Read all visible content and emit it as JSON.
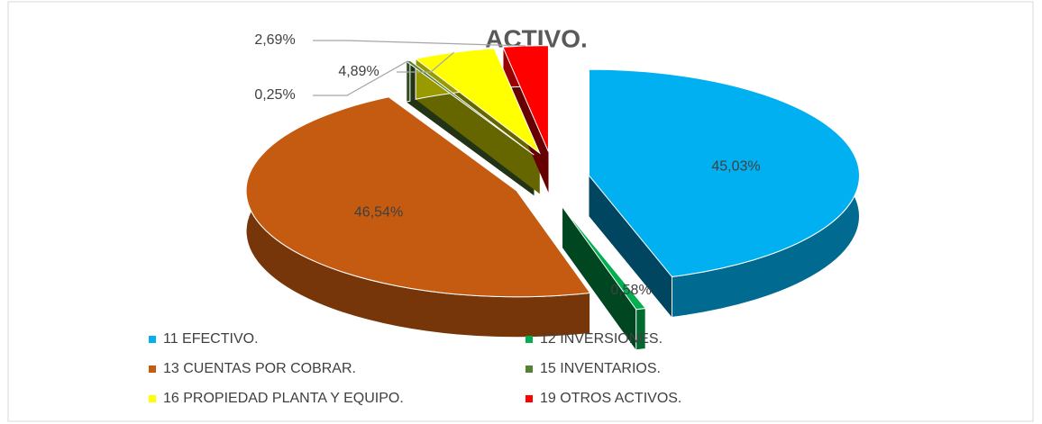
{
  "chart_data": {
    "type": "pie3d",
    "title": "ACTIVO.",
    "categories": [
      "11 EFECTIVO.",
      "12 INVERSIONES.",
      "13 CUENTAS POR COBRAR.",
      "15 INVENTARIOS.",
      "16 PROPIEDAD PLANTA Y EQUIPO.",
      "19 OTROS ACTIVOS."
    ],
    "values": [
      45.03,
      0.58,
      46.54,
      0.25,
      4.89,
      2.69
    ],
    "value_labels": [
      "45,03%",
      "0,58%",
      "46,54%",
      "0,25%",
      "4,89%",
      "2,69%"
    ],
    "colors": [
      "#00b0f0",
      "#00b050",
      "#c55a11",
      "#548235",
      "#ffff00",
      "#ff0000"
    ],
    "legend": "bottom"
  }
}
